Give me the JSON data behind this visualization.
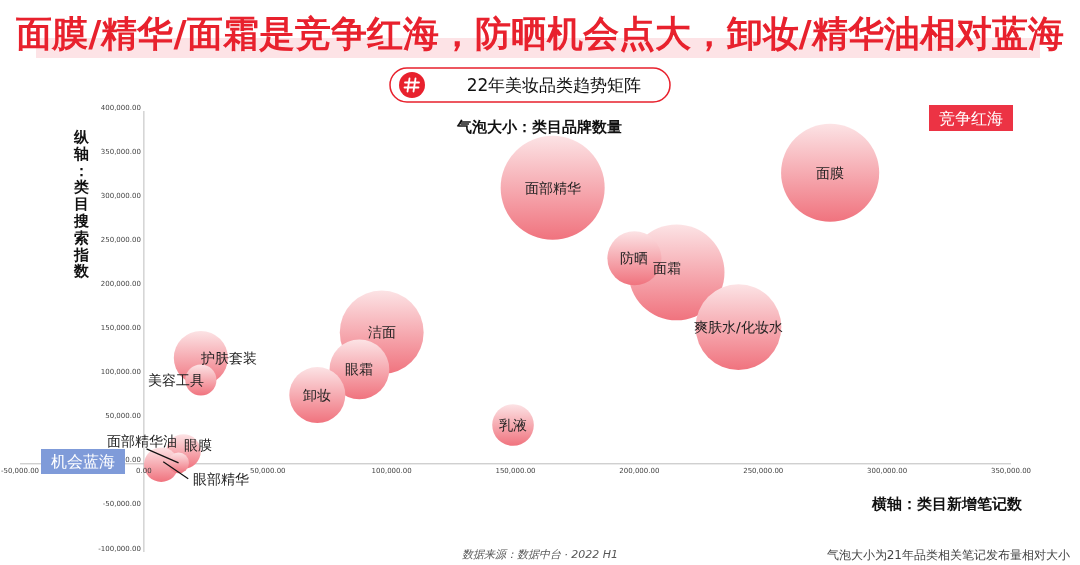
{
  "chart_data": {
    "type": "bubble",
    "title": "面膜/精华/面霜是竞争红海，防晒机会点大，卸妆/精华油相对蓝海",
    "subtitle": "22年美妆品类趋势矩阵",
    "xlabel": "横轴：类目新增笔记数",
    "ylabel": "纵轴：类目搜索指数",
    "color": "#f0737e",
    "xlim": [
      -50000,
      350000
    ],
    "ylim": [
      -100000,
      400000
    ],
    "xticks": [
      {
        "value": -50000,
        "label": "-50,000.00"
      },
      {
        "value": 0,
        "label": "0.00"
      },
      {
        "value": 50000,
        "label": "50,000.00"
      },
      {
        "value": 100000,
        "label": "100,000.00"
      },
      {
        "value": 150000,
        "label": "150,000.00"
      },
      {
        "value": 200000,
        "label": "200,000.00"
      },
      {
        "value": 250000,
        "label": "250,000.00"
      },
      {
        "value": 300000,
        "label": "300,000.00"
      },
      {
        "value": 350000,
        "label": "350,000.00"
      }
    ],
    "yticks": [
      {
        "value": -100000,
        "label": "-100,000.00"
      },
      {
        "value": -50000,
        "label": "-50,000.00"
      },
      {
        "value": 0,
        "label": "0.00"
      },
      {
        "value": 50000,
        "label": "50,000.00"
      },
      {
        "value": 100000,
        "label": "100,000.00"
      },
      {
        "value": 150000,
        "label": "150,000.00"
      },
      {
        "value": 200000,
        "label": "200,000.00"
      },
      {
        "value": 250000,
        "label": "250,000.00"
      },
      {
        "value": 300000,
        "label": "300,000.00"
      },
      {
        "value": 350000,
        "label": "350,000.00"
      },
      {
        "value": 400000,
        "label": "400,000.00"
      }
    ],
    "series": [
      {
        "name": "面膜",
        "x": [
          277000
        ],
        "values": [
          330000
        ],
        "sizes": [
          0.89
        ]
      },
      {
        "name": "面部精华",
        "x": [
          165000
        ],
        "values": [
          313000
        ],
        "sizes": [
          1
        ]
      },
      {
        "name": "防晒",
        "x": [
          198000
        ],
        "values": [
          233000
        ],
        "sizes": [
          0.27
        ]
      },
      {
        "name": "面霜",
        "x": [
          215000
        ],
        "values": [
          217000
        ],
        "sizes": [
          0.85
        ]
      },
      {
        "name": "爽肤水/化妆水",
        "x": [
          240000
        ],
        "values": [
          155000
        ],
        "sizes": [
          0.68
        ]
      },
      {
        "name": "洁面",
        "x": [
          96000
        ],
        "values": [
          149000
        ],
        "sizes": [
          0.65
        ]
      },
      {
        "name": "眼霜",
        "x": [
          87000
        ],
        "values": [
          107000
        ],
        "sizes": [
          0.33
        ]
      },
      {
        "name": "卸妆",
        "x": [
          70000
        ],
        "values": [
          78000
        ],
        "sizes": [
          0.29
        ]
      },
      {
        "name": "护肤套装",
        "x": [
          23000
        ],
        "values": [
          120000
        ],
        "sizes": [
          0.27
        ]
      },
      {
        "name": "美容工具",
        "x": [
          23000
        ],
        "values": [
          95000
        ],
        "sizes": [
          0.09
        ]
      },
      {
        "name": "乳液",
        "x": [
          149000
        ],
        "values": [
          44000
        ],
        "sizes": [
          0.16
        ]
      },
      {
        "name": "眼膜",
        "x": [
          16000
        ],
        "values": [
          14000
        ],
        "sizes": [
          0.11
        ]
      },
      {
        "name": "面部精华油",
        "x": [
          14000
        ],
        "values": [
          1000
        ],
        "sizes": [
          0.04
        ]
      },
      {
        "name": "眼部精华",
        "x": [
          7000
        ],
        "values": [
          -1000
        ],
        "sizes": [
          0.11
        ]
      }
    ],
    "annotations": [
      "气泡大小：类目品牌数量",
      "竞争红海",
      "机会蓝海",
      "数据来源：数据中台 · 2022 H1",
      "气泡大小为21年品类相关笔记发布量相对大小"
    ]
  }
}
